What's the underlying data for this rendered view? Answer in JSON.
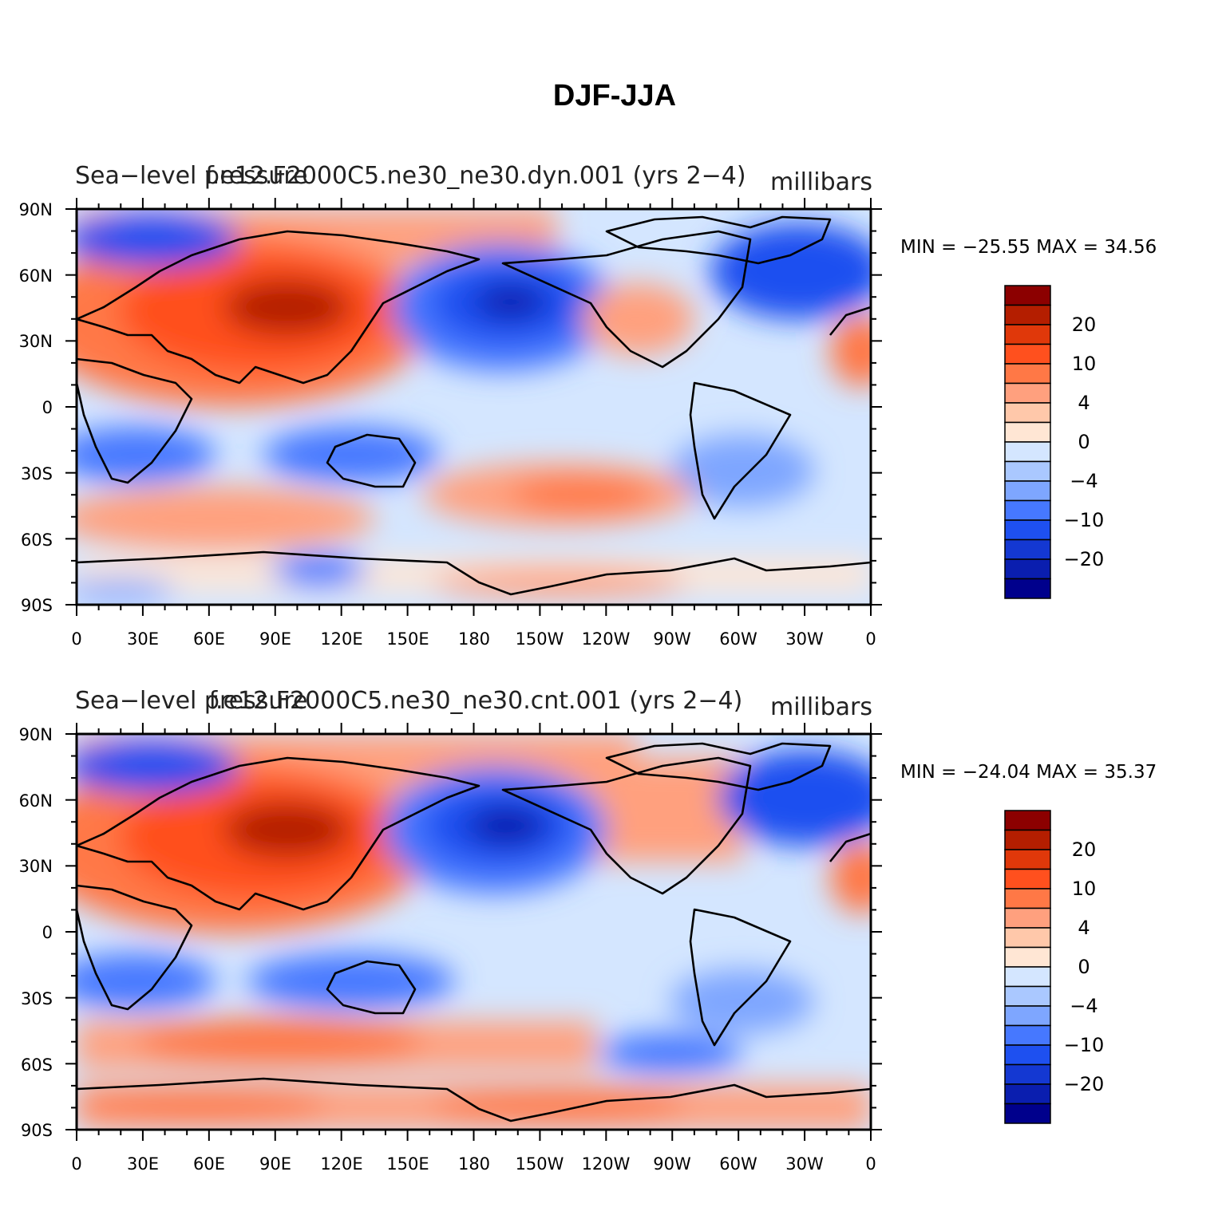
{
  "title": "DJF-JJA",
  "colors": {
    "sea_bg": "#d4e6ff",
    "land_line": "#000000",
    "palette": [
      "#00008c",
      "#0a1eaf",
      "#1438d2",
      "#1e50f0",
      "#4678ff",
      "#7ea6ff",
      "#aac8ff",
      "#d4e6ff",
      "#ffe6d4",
      "#ffc8aa",
      "#ffa07e",
      "#ff7846",
      "#ff501e",
      "#e0380a",
      "#b41e00",
      "#8c0000"
    ]
  },
  "colorbar": {
    "levels": [
      "-25",
      "-20",
      "-15",
      "-10",
      "-8",
      "-6",
      "-4",
      "-2",
      "0",
      "2",
      "4",
      "6",
      "8",
      "10",
      "15",
      "20",
      "25"
    ],
    "labels": [
      "20",
      "10",
      "4",
      "0",
      "−4",
      "−10",
      "−20"
    ]
  },
  "axes": {
    "lat_labels": [
      "90N",
      "60N",
      "30N",
      "0",
      "30S",
      "60S",
      "90S"
    ],
    "lon_labels": [
      "0",
      "30E",
      "60E",
      "90E",
      "120E",
      "150E",
      "180",
      "150W",
      "120W",
      "90W",
      "60W",
      "30W",
      "0"
    ]
  },
  "panels": [
    {
      "left_title": "Sea−level pressure",
      "center_title": "f.e12.F2000C5.ne30_ne30.dyn.001 (yrs 2−4)",
      "units": "millibars",
      "minmax": "MIN = −25.55  MAX =   34.56",
      "min": -25.55,
      "max": 34.56,
      "features": [
        {
          "name": "siberian-high",
          "lon": 100,
          "lat": 48,
          "value": 25
        },
        {
          "name": "aleutian-low",
          "lon": 210,
          "lat": 49,
          "value": -22
        },
        {
          "name": "icelandic-low",
          "lon": 330,
          "lat": 58,
          "value": -12
        },
        {
          "name": "southern-pacific-high",
          "lon": 240,
          "lat": -37,
          "value": 10
        },
        {
          "name": "indian-ocean-high",
          "lon": 90,
          "lat": -47,
          "value": 9
        }
      ]
    },
    {
      "left_title": "Sea−level pressure",
      "center_title": "f.e12.F2000C5.ne30_ne30.cnt.001 (yrs 2−4)",
      "units": "millibars",
      "minmax": "MIN = −24.04  MAX =   35.37",
      "min": -24.04,
      "max": 35.37,
      "features": [
        {
          "name": "siberian-high",
          "lon": 100,
          "lat": 48,
          "value": 25
        },
        {
          "name": "aleutian-low",
          "lon": 200,
          "lat": 47,
          "value": -22
        },
        {
          "name": "icelandic-low",
          "lon": 335,
          "lat": 60,
          "value": -12
        },
        {
          "name": "southern-pacific-low",
          "lon": 250,
          "lat": -52,
          "value": -9
        },
        {
          "name": "indian-ocean-high",
          "lon": 90,
          "lat": -47,
          "value": 9
        }
      ]
    }
  ]
}
